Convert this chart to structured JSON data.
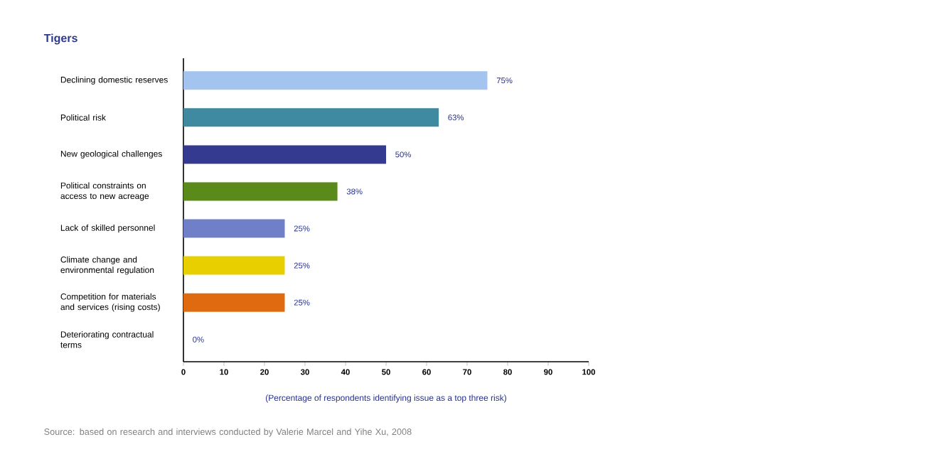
{
  "chart_data": {
    "type": "bar",
    "orientation": "horizontal",
    "title": "Tigers",
    "categories": [
      "Declining domestic reserves",
      "Political risk",
      "New geological challenges",
      "Political constraints on access to new acreage",
      "Lack of skilled personnel",
      "Climate change and environmental regulation",
      "Competition for materials and services (rising costs)",
      "Deteriorating contractual terms"
    ],
    "values": [
      75,
      63,
      50,
      38,
      25,
      25,
      25,
      0
    ],
    "colors": [
      "#a3c4ee",
      "#3f8aa0",
      "#333a90",
      "#5a8a1a",
      "#6f80c8",
      "#e8d000",
      "#e06a10",
      "#888888"
    ],
    "value_labels": [
      "75%",
      "63%",
      "50%",
      "38%",
      "25%",
      "25%",
      "25%",
      "0%"
    ],
    "xlim": [
      0,
      100
    ],
    "xticks": [
      0,
      10,
      20,
      30,
      40,
      50,
      60,
      70,
      80,
      90,
      100
    ],
    "xlabel": "(Percentage of respondents identifying issue as a top three risk)",
    "annotations": [
      "Source: based on research and interviews conducted by Valerie Marcel and Yihe Xu, 2008"
    ],
    "grid": false
  }
}
